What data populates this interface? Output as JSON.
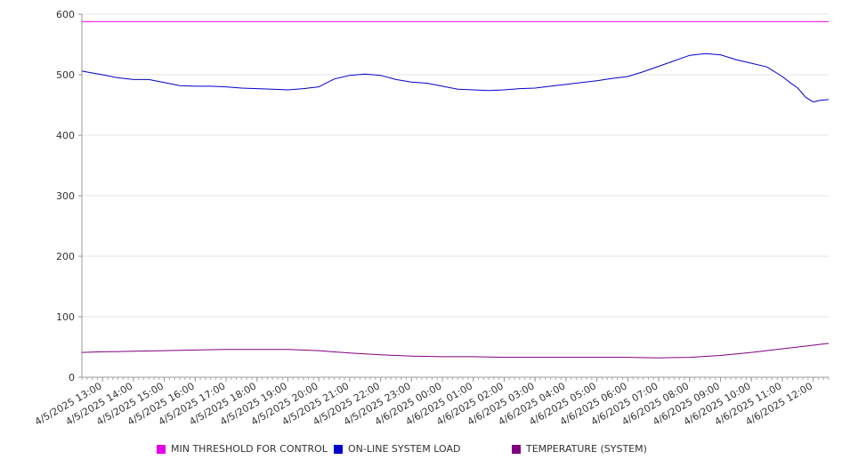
{
  "chart_data": {
    "type": "line",
    "ylim": [
      0,
      600
    ],
    "yticks": [
      0,
      100,
      200,
      300,
      400,
      500,
      600
    ],
    "x_start": "4/5/2025 12:20",
    "x_end": "4/6/2025 12:30",
    "x_tick_labels": [
      "4/5/2025 13:00",
      "4/5/2025 14:00",
      "4/5/2025 15:00",
      "4/5/2025 16:00",
      "4/5/2025 17:00",
      "4/5/2025 18:00",
      "4/5/2025 19:00",
      "4/5/2025 20:00",
      "4/5/2025 21:00",
      "4/5/2025 22:00",
      "4/5/2025 23:00",
      "4/6/2025 00:00",
      "4/6/2025 01:00",
      "4/6/2025 02:00",
      "4/6/2025 03:00",
      "4/6/2025 04:00",
      "4/6/2025 05:00",
      "4/6/2025 06:00",
      "4/6/2025 07:00",
      "4/6/2025 08:00",
      "4/6/2025 09:00",
      "4/6/2025 10:00",
      "4/6/2025 11:00",
      "4/6/2025 12:00"
    ],
    "grid": true,
    "legend_position": "bottom",
    "series": [
      {
        "name": "MIN THRESHOLD FOR CONTROL",
        "color": "#e600e6",
        "points": [
          [
            "4/5/2025 12:20",
            588
          ],
          [
            "4/6/2025 12:30",
            588
          ]
        ]
      },
      {
        "name": "ON-LINE SYSTEM LOAD",
        "color": "#0000cc",
        "points": [
          [
            "4/5/2025 12:20",
            506
          ],
          [
            "4/5/2025 12:40",
            503
          ],
          [
            "4/5/2025 13:00",
            500
          ],
          [
            "4/5/2025 13:30",
            495
          ],
          [
            "4/5/2025 14:00",
            492
          ],
          [
            "4/5/2025 14:30",
            492
          ],
          [
            "4/5/2025 15:00",
            487
          ],
          [
            "4/5/2025 15:30",
            482
          ],
          [
            "4/5/2025 16:00",
            481
          ],
          [
            "4/5/2025 16:30",
            481
          ],
          [
            "4/5/2025 17:00",
            480
          ],
          [
            "4/5/2025 17:30",
            478
          ],
          [
            "4/5/2025 18:00",
            477
          ],
          [
            "4/5/2025 18:30",
            476
          ],
          [
            "4/5/2025 19:00",
            475
          ],
          [
            "4/5/2025 19:30",
            477
          ],
          [
            "4/5/2025 20:00",
            480
          ],
          [
            "4/5/2025 20:30",
            493
          ],
          [
            "4/5/2025 21:00",
            499
          ],
          [
            "4/5/2025 21:30",
            501
          ],
          [
            "4/5/2025 22:00",
            499
          ],
          [
            "4/5/2025 22:30",
            492
          ],
          [
            "4/5/2025 23:00",
            488
          ],
          [
            "4/5/2025 23:30",
            486
          ],
          [
            "4/6/2025 00:00",
            481
          ],
          [
            "4/6/2025 00:30",
            476
          ],
          [
            "4/6/2025 01:00",
            475
          ],
          [
            "4/6/2025 01:30",
            474
          ],
          [
            "4/6/2025 02:00",
            475
          ],
          [
            "4/6/2025 02:30",
            477
          ],
          [
            "4/6/2025 03:00",
            478
          ],
          [
            "4/6/2025 03:30",
            481
          ],
          [
            "4/6/2025 04:00",
            484
          ],
          [
            "4/6/2025 04:30",
            487
          ],
          [
            "4/6/2025 05:00",
            490
          ],
          [
            "4/6/2025 05:30",
            494
          ],
          [
            "4/6/2025 06:00",
            497
          ],
          [
            "4/6/2025 06:30",
            505
          ],
          [
            "4/6/2025 07:00",
            514
          ],
          [
            "4/6/2025 07:30",
            523
          ],
          [
            "4/6/2025 08:00",
            532
          ],
          [
            "4/6/2025 08:30",
            535
          ],
          [
            "4/6/2025 09:00",
            533
          ],
          [
            "4/6/2025 09:30",
            525
          ],
          [
            "4/6/2025 10:00",
            519
          ],
          [
            "4/6/2025 10:30",
            513
          ],
          [
            "4/6/2025 11:00",
            497
          ],
          [
            "4/6/2025 11:15",
            487
          ],
          [
            "4/6/2025 11:30",
            478
          ],
          [
            "4/6/2025 11:45",
            463
          ],
          [
            "4/6/2025 12:00",
            455
          ],
          [
            "4/6/2025 12:15",
            458
          ],
          [
            "4/6/2025 12:30",
            459
          ]
        ]
      },
      {
        "name": "TEMPERATURE (SYSTEM)",
        "color": "#800080",
        "points": [
          [
            "4/5/2025 12:20",
            41
          ],
          [
            "4/5/2025 13:00",
            42
          ],
          [
            "4/5/2025 14:00",
            43
          ],
          [
            "4/5/2025 15:00",
            44
          ],
          [
            "4/5/2025 16:00",
            45
          ],
          [
            "4/5/2025 17:00",
            46
          ],
          [
            "4/5/2025 18:00",
            46
          ],
          [
            "4/5/2025 19:00",
            46
          ],
          [
            "4/5/2025 20:00",
            44
          ],
          [
            "4/5/2025 21:00",
            40
          ],
          [
            "4/5/2025 22:00",
            37
          ],
          [
            "4/5/2025 23:00",
            35
          ],
          [
            "4/6/2025 00:00",
            34
          ],
          [
            "4/6/2025 01:00",
            34
          ],
          [
            "4/6/2025 02:00",
            33
          ],
          [
            "4/6/2025 03:00",
            33
          ],
          [
            "4/6/2025 04:00",
            33
          ],
          [
            "4/6/2025 05:00",
            33
          ],
          [
            "4/6/2025 06:00",
            33
          ],
          [
            "4/6/2025 07:00",
            32
          ],
          [
            "4/6/2025 08:00",
            33
          ],
          [
            "4/6/2025 09:00",
            36
          ],
          [
            "4/6/2025 10:00",
            41
          ],
          [
            "4/6/2025 11:00",
            47
          ],
          [
            "4/6/2025 12:00",
            53
          ],
          [
            "4/6/2025 12:30",
            56
          ]
        ]
      }
    ]
  }
}
